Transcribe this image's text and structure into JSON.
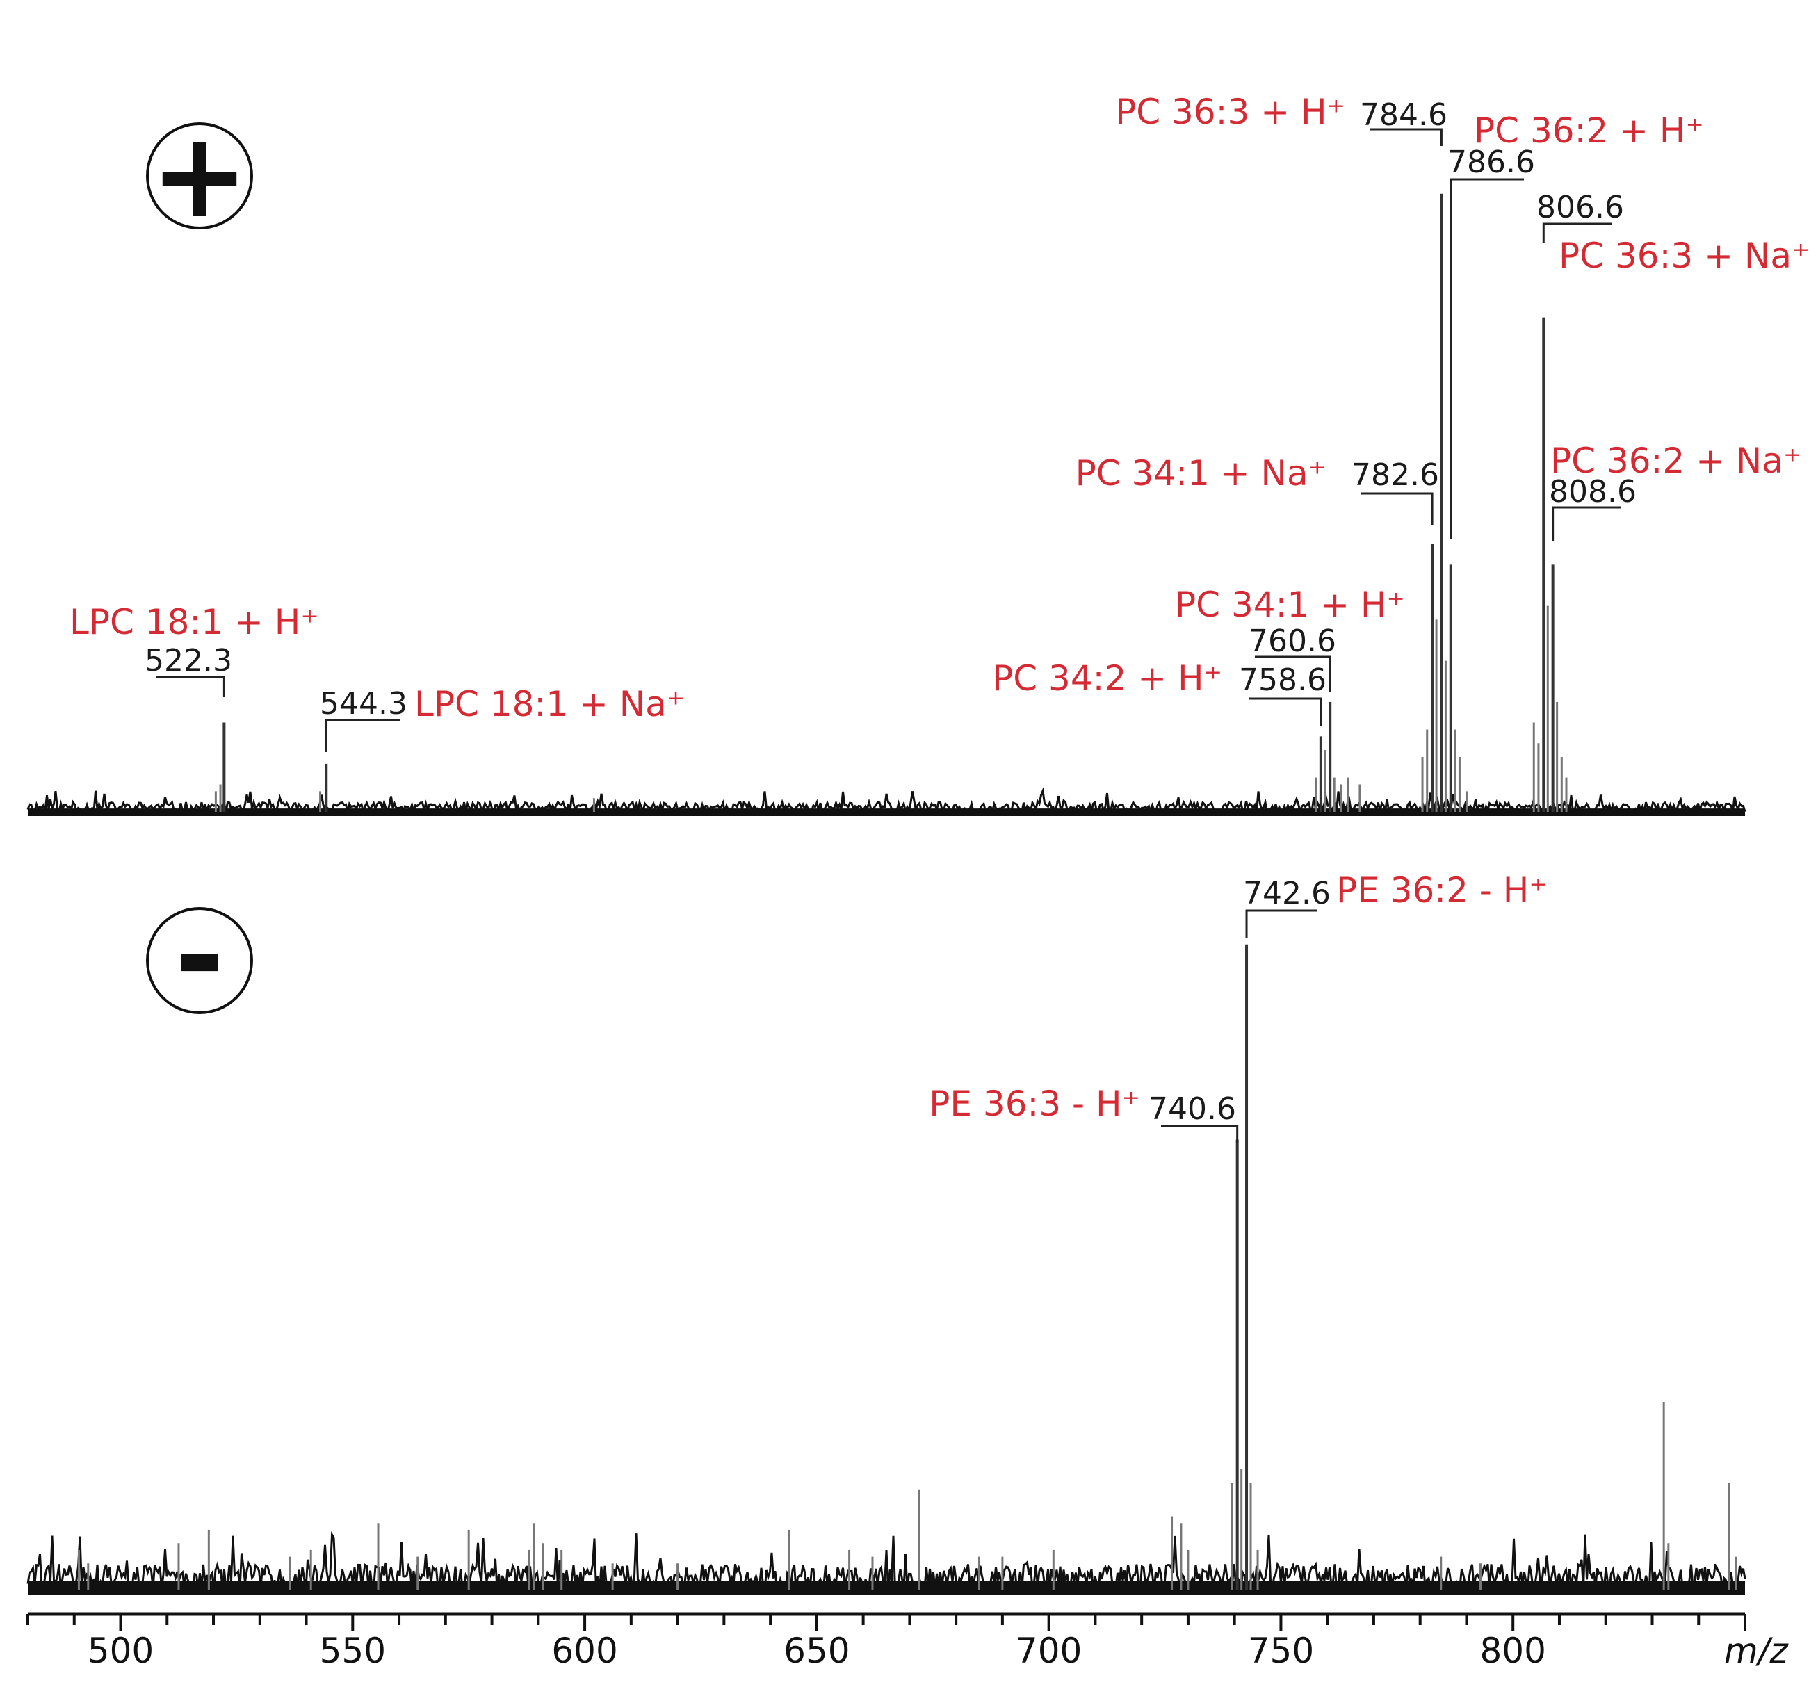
{
  "chart_data": {
    "type": "line",
    "x_unit_label": "m/z",
    "xlim": [
      480,
      850
    ],
    "x_ticks": [
      500,
      550,
      600,
      650,
      700,
      750,
      800
    ],
    "grid": false,
    "legend": "none",
    "colors": {
      "annotation": "#d42a34",
      "trace": "#111111",
      "peak": "#777777"
    },
    "panels": [
      {
        "mode_symbol": "+",
        "mode_icon": "plus-circle-icon",
        "ylim": [
          0,
          100
        ],
        "peaks": [
          {
            "mz": "522.3",
            "x": 522.3,
            "y": 13,
            "label": "LPC 18:1 + H⁺"
          },
          {
            "mz": "544.3",
            "x": 544.3,
            "y": 7,
            "label": "LPC 18:1 + Na⁺"
          },
          {
            "mz": "758.6",
            "x": 758.6,
            "y": 11,
            "label": "PC 34:2 + H⁺"
          },
          {
            "mz": "760.6",
            "x": 760.6,
            "y": 16,
            "label": "PC 34:1 + H⁺"
          },
          {
            "mz": "782.6",
            "x": 782.6,
            "y": 39,
            "label": "PC 34:1 + Na⁺"
          },
          {
            "mz": "784.6",
            "x": 784.6,
            "y": 90,
            "label": "PC 36:3 + H⁺"
          },
          {
            "mz": "786.6",
            "x": 786.6,
            "y": 36,
            "label": "PC 36:2 + H⁺"
          },
          {
            "mz": "806.6",
            "x": 806.6,
            "y": 72,
            "label": "PC 36:3 + Na⁺"
          },
          {
            "mz": "808.6",
            "x": 808.6,
            "y": 36,
            "label": "PC 36:2 + Na⁺"
          }
        ],
        "minor_peaks": [
          {
            "x": 520.5,
            "y": 3
          },
          {
            "x": 521.5,
            "y": 4
          },
          {
            "x": 543.0,
            "y": 3
          },
          {
            "x": 602.0,
            "y": 2
          },
          {
            "x": 757.5,
            "y": 5
          },
          {
            "x": 759.5,
            "y": 9
          },
          {
            "x": 761.5,
            "y": 5
          },
          {
            "x": 763.0,
            "y": 4
          },
          {
            "x": 764.5,
            "y": 5
          },
          {
            "x": 767.0,
            "y": 4
          },
          {
            "x": 780.5,
            "y": 8
          },
          {
            "x": 781.5,
            "y": 12
          },
          {
            "x": 783.5,
            "y": 28
          },
          {
            "x": 785.5,
            "y": 22
          },
          {
            "x": 787.5,
            "y": 12
          },
          {
            "x": 788.5,
            "y": 8
          },
          {
            "x": 790.0,
            "y": 3
          },
          {
            "x": 804.5,
            "y": 13
          },
          {
            "x": 805.5,
            "y": 10
          },
          {
            "x": 807.5,
            "y": 30
          },
          {
            "x": 809.5,
            "y": 16
          },
          {
            "x": 810.5,
            "y": 8
          },
          {
            "x": 811.5,
            "y": 5
          }
        ]
      },
      {
        "mode_symbol": "-",
        "mode_icon": "minus-circle-icon",
        "ylim": [
          0,
          100
        ],
        "peaks": [
          {
            "mz": "740.6",
            "x": 740.6,
            "y": 67,
            "label": "PE 36:3 - H⁺"
          },
          {
            "mz": "742.6",
            "x": 742.6,
            "y": 96,
            "label": "PE 36:2 - H⁺"
          }
        ],
        "minor_peaks": [
          {
            "x": 491.0,
            "y": 6
          },
          {
            "x": 493.0,
            "y": 4
          },
          {
            "x": 512.5,
            "y": 7
          },
          {
            "x": 519.0,
            "y": 9
          },
          {
            "x": 536.5,
            "y": 5
          },
          {
            "x": 541.0,
            "y": 6
          },
          {
            "x": 555.5,
            "y": 10
          },
          {
            "x": 564.0,
            "y": 5
          },
          {
            "x": 575.0,
            "y": 9
          },
          {
            "x": 588.0,
            "y": 6
          },
          {
            "x": 589.0,
            "y": 10
          },
          {
            "x": 591.0,
            "y": 7
          },
          {
            "x": 595.0,
            "y": 6
          },
          {
            "x": 606.0,
            "y": 4
          },
          {
            "x": 620.0,
            "y": 4
          },
          {
            "x": 644.0,
            "y": 9
          },
          {
            "x": 657.0,
            "y": 6
          },
          {
            "x": 662.0,
            "y": 5
          },
          {
            "x": 672.0,
            "y": 15
          },
          {
            "x": 685.0,
            "y": 5
          },
          {
            "x": 690.0,
            "y": 5
          },
          {
            "x": 701.0,
            "y": 6
          },
          {
            "x": 726.5,
            "y": 11
          },
          {
            "x": 728.5,
            "y": 10
          },
          {
            "x": 730.0,
            "y": 6
          },
          {
            "x": 739.5,
            "y": 16
          },
          {
            "x": 741.5,
            "y": 18
          },
          {
            "x": 743.5,
            "y": 16
          },
          {
            "x": 745.0,
            "y": 6
          },
          {
            "x": 784.5,
            "y": 5
          },
          {
            "x": 793.0,
            "y": 4
          },
          {
            "x": 832.5,
            "y": 28
          },
          {
            "x": 833.5,
            "y": 7
          },
          {
            "x": 846.5,
            "y": 16
          },
          {
            "x": 848.0,
            "y": 5
          }
        ]
      }
    ]
  }
}
